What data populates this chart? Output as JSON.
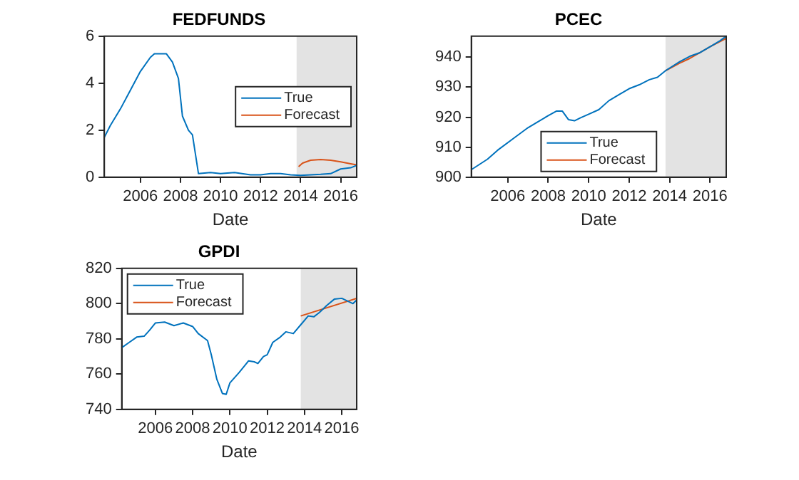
{
  "chart_data": [
    {
      "type": "line",
      "title": "FEDFUNDS",
      "xlabel": "Date",
      "xlim": [
        2004.2,
        2016.8
      ],
      "xticks": [
        2006,
        2008,
        2010,
        2012,
        2014,
        2016
      ],
      "ylim": [
        0,
        6
      ],
      "yticks": [
        0,
        2,
        4,
        6
      ],
      "legend": "right",
      "grid": false,
      "bands": [
        {
          "axis": "x",
          "from": 2013.8,
          "to": 2016.8,
          "color": "#e3e3e3"
        }
      ],
      "series": [
        {
          "name": "True",
          "color": "#0072bd",
          "x": [
            2004.2,
            2004.5,
            2005,
            2005.5,
            2006,
            2006.5,
            2006.7,
            2007.3,
            2007.6,
            2007.9,
            2008.1,
            2008.4,
            2008.6,
            2008.9,
            2009.5,
            2010,
            2010.7,
            2011.5,
            2012,
            2012.5,
            2013,
            2013.5,
            2014,
            2015,
            2015.5,
            2016,
            2016.5,
            2016.8
          ],
          "values": [
            1.7,
            2.2,
            2.9,
            3.7,
            4.5,
            5.1,
            5.25,
            5.25,
            4.9,
            4.2,
            2.6,
            2.0,
            1.8,
            0.15,
            0.2,
            0.15,
            0.2,
            0.1,
            0.1,
            0.15,
            0.15,
            0.1,
            0.08,
            0.12,
            0.15,
            0.35,
            0.4,
            0.5
          ]
        },
        {
          "name": "Forecast",
          "color": "#d95319",
          "x": [
            2013.9,
            2014.1,
            2014.5,
            2015,
            2015.5,
            2016,
            2016.5,
            2016.8
          ],
          "values": [
            0.45,
            0.6,
            0.72,
            0.75,
            0.72,
            0.65,
            0.57,
            0.52
          ]
        }
      ]
    },
    {
      "type": "line",
      "title": "PCEC",
      "xlabel": "Date",
      "xlim": [
        2004.2,
        2016.8
      ],
      "xticks": [
        2006,
        2008,
        2010,
        2012,
        2014,
        2016
      ],
      "ylim": [
        900,
        947
      ],
      "yticks": [
        900,
        910,
        920,
        930,
        940
      ],
      "legend": "bottom",
      "grid": false,
      "bands": [
        {
          "axis": "x",
          "from": 2013.8,
          "to": 2016.8,
          "color": "#e3e3e3"
        }
      ],
      "series": [
        {
          "name": "True",
          "color": "#0072bd",
          "x": [
            2004.2,
            2005,
            2005.5,
            2006.3,
            2007,
            2007.5,
            2008,
            2008.4,
            2008.7,
            2009,
            2009.3,
            2009.6,
            2010,
            2010.5,
            2011,
            2011.5,
            2012,
            2012.5,
            2013,
            2013.4,
            2013.8,
            2014.5,
            2015,
            2015.5,
            2016,
            2016.5,
            2016.8
          ],
          "values": [
            902.5,
            906,
            909,
            913,
            916.5,
            918.5,
            920.5,
            922,
            922,
            919.2,
            918.8,
            919.8,
            921,
            922.5,
            925.5,
            927.5,
            929.5,
            930.8,
            932.5,
            933.3,
            935.5,
            938.5,
            940.3,
            941.5,
            943.5,
            945.5,
            947
          ]
        },
        {
          "name": "Forecast",
          "color": "#d95319",
          "x": [
            2013.8,
            2014.5,
            2015,
            2015.5,
            2016,
            2016.8
          ],
          "values": [
            935.5,
            938,
            939.6,
            941.5,
            943.5,
            946.3
          ]
        }
      ]
    },
    {
      "type": "line",
      "title": "GPDI",
      "xlabel": "Date",
      "xlim": [
        2004.2,
        2016.8
      ],
      "xticks": [
        2006,
        2008,
        2010,
        2012,
        2014,
        2016
      ],
      "ylim": [
        740,
        820
      ],
      "yticks": [
        740,
        760,
        780,
        800,
        820
      ],
      "legend": "top left",
      "grid": false,
      "bands": [
        {
          "axis": "x",
          "from": 2013.8,
          "to": 2016.8,
          "color": "#e3e3e3"
        }
      ],
      "series": [
        {
          "name": "True",
          "color": "#0072bd",
          "x": [
            2004.2,
            2004.6,
            2005,
            2005.4,
            2005.7,
            2006,
            2006.5,
            2007,
            2007.5,
            2008,
            2008.3,
            2008.8,
            2009,
            2009.3,
            2009.6,
            2009.8,
            2010,
            2010.5,
            2011,
            2011.3,
            2011.5,
            2011.8,
            2012,
            2012.3,
            2012.7,
            2013,
            2013.4,
            2013.8,
            2014.2,
            2014.5,
            2014.8,
            2015.2,
            2015.6,
            2016,
            2016.4,
            2016.6,
            2016.8
          ],
          "values": [
            775,
            778,
            781,
            781.5,
            785,
            789,
            789.5,
            787.5,
            789,
            787,
            783,
            779,
            771,
            757,
            749,
            748.5,
            755,
            761,
            767.5,
            767,
            766,
            770,
            771,
            778,
            781,
            784,
            783,
            788,
            793,
            792.5,
            795,
            799,
            802.5,
            803,
            801,
            800,
            802
          ]
        },
        {
          "name": "Forecast",
          "color": "#d95319",
          "x": [
            2013.8,
            2016.8
          ],
          "values": [
            793,
            803
          ]
        }
      ]
    }
  ]
}
